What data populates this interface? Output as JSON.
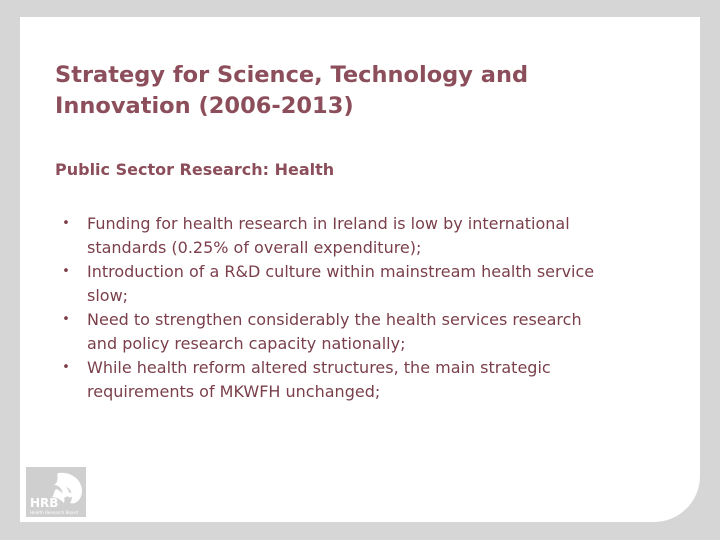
{
  "slide": {
    "title_lines": [
      "Strategy for Science, Technology and",
      "Innovation (2006-2013)"
    ],
    "subtitle": "Public Sector Research: Health",
    "bullets": [
      {
        "lines": [
          "Funding for health research in Ireland is low by international",
          "standards (0.25% of overall expenditure);"
        ]
      },
      {
        "lines": [
          "Introduction of a R&D culture within mainstream health service",
          "slow;"
        ]
      },
      {
        "lines": [
          "Need to strengthen considerably the health services research",
          "and policy research capacity nationally;"
        ]
      },
      {
        "lines": [
          "While health reform altered structures, the main strategic",
          "requirements of MKWFH unchanged;"
        ]
      }
    ],
    "bullet_glyph": "•"
  },
  "logo": {
    "abbr": "HRB",
    "name": "Health Research Board",
    "icon": "hrb-logo-icon"
  },
  "colors": {
    "text": "#8b4e5a",
    "frame": "#d6d6d6",
    "card": "#ffffff"
  }
}
